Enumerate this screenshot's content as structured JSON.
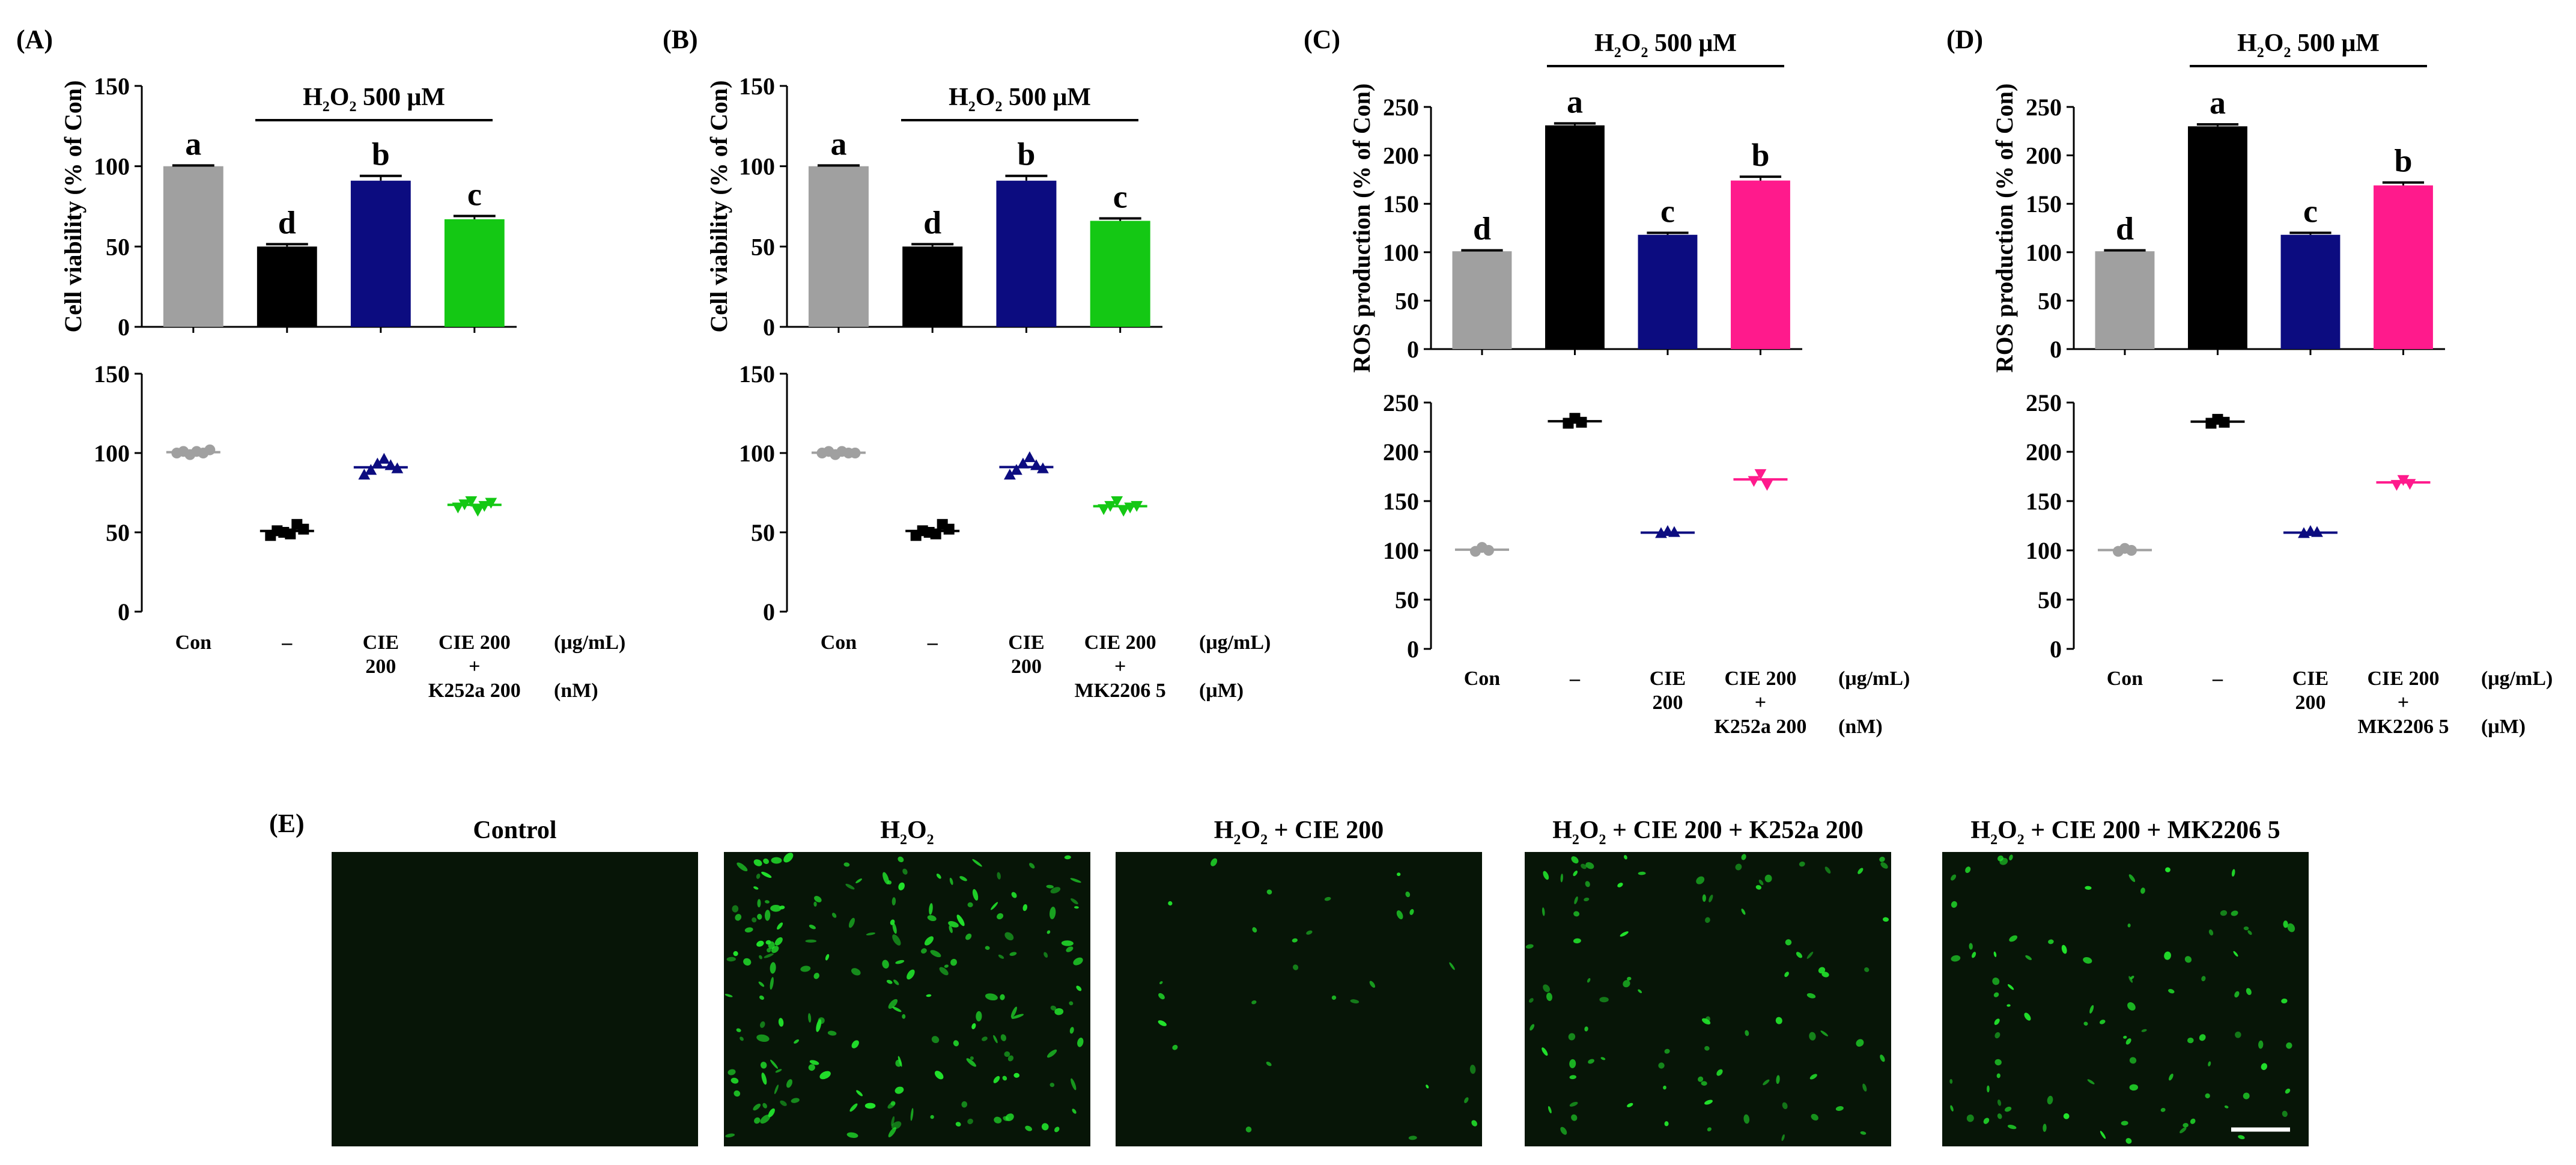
{
  "chart_data": [
    {
      "panel": "(A)",
      "type": "bar",
      "ylabel": "Cell viability (% of Con)",
      "ylim": [
        0,
        150
      ],
      "yticks": [
        0,
        50,
        100,
        150
      ],
      "treatment": {
        "base": "H",
        "sub": "2",
        "mid": "O",
        "sub2": "2",
        "rest": " 500 μM"
      },
      "categories": [
        [
          "Con"
        ],
        [
          "–"
        ],
        [
          "CIE",
          "200"
        ],
        [
          "CIE 200",
          "+",
          "K252a 200"
        ]
      ],
      "units": [
        "(μg/mL)",
        "",
        "(nM)"
      ],
      "values": [
        100,
        50,
        91,
        67
      ],
      "errors": [
        0.5,
        1.5,
        3,
        2
      ],
      "colors": [
        "#a0a0a0",
        "#000000",
        "#0c0c80",
        "#14c814"
      ],
      "letters": [
        "a",
        "d",
        "b",
        "c"
      ],
      "scatter": {
        "type": "scatter",
        "ylim": [
          0,
          150
        ],
        "yticks": [
          0,
          50,
          100,
          150
        ],
        "markers": [
          "circle",
          "square",
          "triangle-up",
          "triangle-down"
        ],
        "points": [
          [
            100,
            101,
            99,
            101,
            100,
            102
          ],
          [
            48,
            51,
            50,
            49,
            55,
            52
          ],
          [
            86,
            89,
            93,
            96,
            92,
            90
          ],
          [
            66,
            68,
            70,
            64,
            67,
            69
          ]
        ]
      }
    },
    {
      "panel": "(B)",
      "type": "bar",
      "ylabel": "Cell viability (% of Con)",
      "ylim": [
        0,
        150
      ],
      "yticks": [
        0,
        50,
        100,
        150
      ],
      "treatment": {
        "base": "H",
        "sub": "2",
        "mid": "O",
        "sub2": "2",
        "rest": " 500 μM"
      },
      "categories": [
        [
          "Con"
        ],
        [
          "–"
        ],
        [
          "CIE",
          "200"
        ],
        [
          "CIE 200",
          "+",
          "MK2206 5"
        ]
      ],
      "units": [
        "(μg/mL)",
        "",
        "(μM)"
      ],
      "values": [
        100,
        50,
        91,
        66
      ],
      "errors": [
        0.5,
        1.5,
        3,
        1.5
      ],
      "colors": [
        "#a0a0a0",
        "#000000",
        "#0c0c80",
        "#14c814"
      ],
      "letters": [
        "a",
        "d",
        "b",
        "c"
      ],
      "scatter": {
        "type": "scatter",
        "ylim": [
          0,
          150
        ],
        "yticks": [
          0,
          50,
          100,
          150
        ],
        "markers": [
          "circle",
          "square",
          "triangle-up",
          "triangle-down"
        ],
        "points": [
          [
            100,
            101,
            99,
            101,
            100,
            100
          ],
          [
            48,
            51,
            50,
            49,
            55,
            52
          ],
          [
            86,
            89,
            93,
            97,
            92,
            90
          ],
          [
            65,
            67,
            70,
            64,
            66,
            67
          ]
        ]
      }
    },
    {
      "panel": "(C)",
      "type": "bar",
      "ylabel": "ROS production (% of Con)",
      "ylim": [
        0,
        250
      ],
      "yticks": [
        0,
        50,
        100,
        150,
        200,
        250
      ],
      "treatment": {
        "base": "H",
        "sub": "2",
        "mid": "O",
        "sub2": "2",
        "rest": " 500 μM"
      },
      "categories": [
        [
          "Con"
        ],
        [
          "–"
        ],
        [
          "CIE",
          "200"
        ],
        [
          "CIE 200",
          "+",
          "K252a 200"
        ]
      ],
      "units": [
        "(μg/mL)",
        "",
        "(nM)"
      ],
      "values": [
        101,
        231,
        118,
        174
      ],
      "errors": [
        1,
        2,
        2,
        4
      ],
      "colors": [
        "#a0a0a0",
        "#000000",
        "#0c0c80",
        "#ff1a8c"
      ],
      "letters": [
        "d",
        "a",
        "c",
        "b"
      ],
      "scatter": {
        "type": "scatter",
        "ylim": [
          0,
          250
        ],
        "yticks": [
          0,
          50,
          100,
          150,
          200,
          250
        ],
        "markers": [
          "circle",
          "square",
          "triangle-up",
          "triangle-down"
        ],
        "points": [
          [
            99,
            103,
            100
          ],
          [
            229,
            234,
            230
          ],
          [
            117,
            119,
            118
          ],
          [
            171,
            178,
            167
          ]
        ]
      }
    },
    {
      "panel": "(D)",
      "type": "bar",
      "ylabel": "ROS production (% of Con)",
      "ylim": [
        0,
        250
      ],
      "yticks": [
        0,
        50,
        100,
        150,
        200,
        250
      ],
      "treatment": {
        "base": "H",
        "sub": "2",
        "mid": "O",
        "sub2": "2",
        "rest": " 500 μM"
      },
      "categories": [
        [
          "Con"
        ],
        [
          "–"
        ],
        [
          "CIE",
          "200"
        ],
        [
          "CIE 200",
          "+",
          "MK2206 5"
        ]
      ],
      "units": [
        "(μg/mL)",
        "",
        "(μM)"
      ],
      "values": [
        101,
        230,
        118,
        169
      ],
      "errors": [
        1,
        2,
        2,
        3
      ],
      "colors": [
        "#a0a0a0",
        "#000000",
        "#0c0c80",
        "#ff1a8c"
      ],
      "letters": [
        "d",
        "a",
        "c",
        "b"
      ],
      "scatter": {
        "type": "scatter",
        "ylim": [
          0,
          250
        ],
        "yticks": [
          0,
          50,
          100,
          150,
          200,
          250
        ],
        "markers": [
          "circle",
          "square",
          "triangle-up",
          "triangle-down"
        ],
        "points": [
          [
            99,
            102,
            100
          ],
          [
            229,
            233,
            230
          ],
          [
            117,
            119,
            118
          ],
          [
            167,
            172,
            168
          ]
        ]
      }
    }
  ],
  "micrographs": {
    "panel": "(E)",
    "images": [
      {
        "title": "Control",
        "density": "none"
      },
      {
        "title": "H2O2",
        "density": "high"
      },
      {
        "title": "H2O2 + CIE 200",
        "density": "low"
      },
      {
        "title": "H2O2 + CIE 200 + K252a 200",
        "density": "medium"
      },
      {
        "title": "H2O2 + CIE 200 + MK2206 5",
        "density": "medium"
      }
    ],
    "fluorescence_color": "#22e52c",
    "background_color": "#071507",
    "scale_bar": true
  }
}
